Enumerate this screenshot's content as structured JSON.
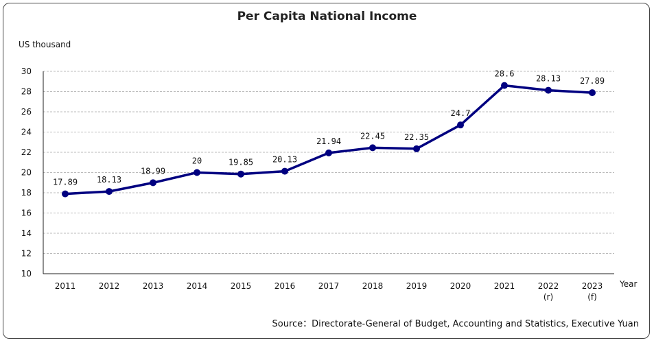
{
  "chart_data": {
    "type": "line",
    "title": "Per Capita National Income",
    "ylabel": "US thousand",
    "xlabel": "Year",
    "categories": [
      [
        "2011"
      ],
      [
        "2012"
      ],
      [
        "2013"
      ],
      [
        "2014"
      ],
      [
        "2015"
      ],
      [
        "2016"
      ],
      [
        "2017"
      ],
      [
        "2018"
      ],
      [
        "2019"
      ],
      [
        "2020"
      ],
      [
        "2021"
      ],
      [
        "2022",
        "(r)"
      ],
      [
        "2023",
        "(f)"
      ]
    ],
    "series": [
      {
        "values": [
          17.89,
          18.13,
          18.99,
          20,
          19.85,
          20.13,
          21.94,
          22.45,
          22.35,
          24.7,
          28.6,
          28.13,
          27.89
        ]
      }
    ],
    "data_labels": [
      "17.89",
      "18.13",
      "18.99",
      "20",
      "19.85",
      "20.13",
      "21.94",
      "22.45",
      "22.35",
      "24.7",
      "28.6",
      "28.13",
      "27.89"
    ],
    "ylim": [
      10,
      30
    ],
    "yticks": [
      10,
      12,
      14,
      16,
      18,
      20,
      22,
      24,
      26,
      28,
      30
    ],
    "grid": true,
    "colors": {
      "line": "#000080",
      "marker": "#000080",
      "grid": "#bbbbbb"
    },
    "source": "Source：Directorate-General of Budget, Accounting and Statistics, Executive Yuan"
  }
}
